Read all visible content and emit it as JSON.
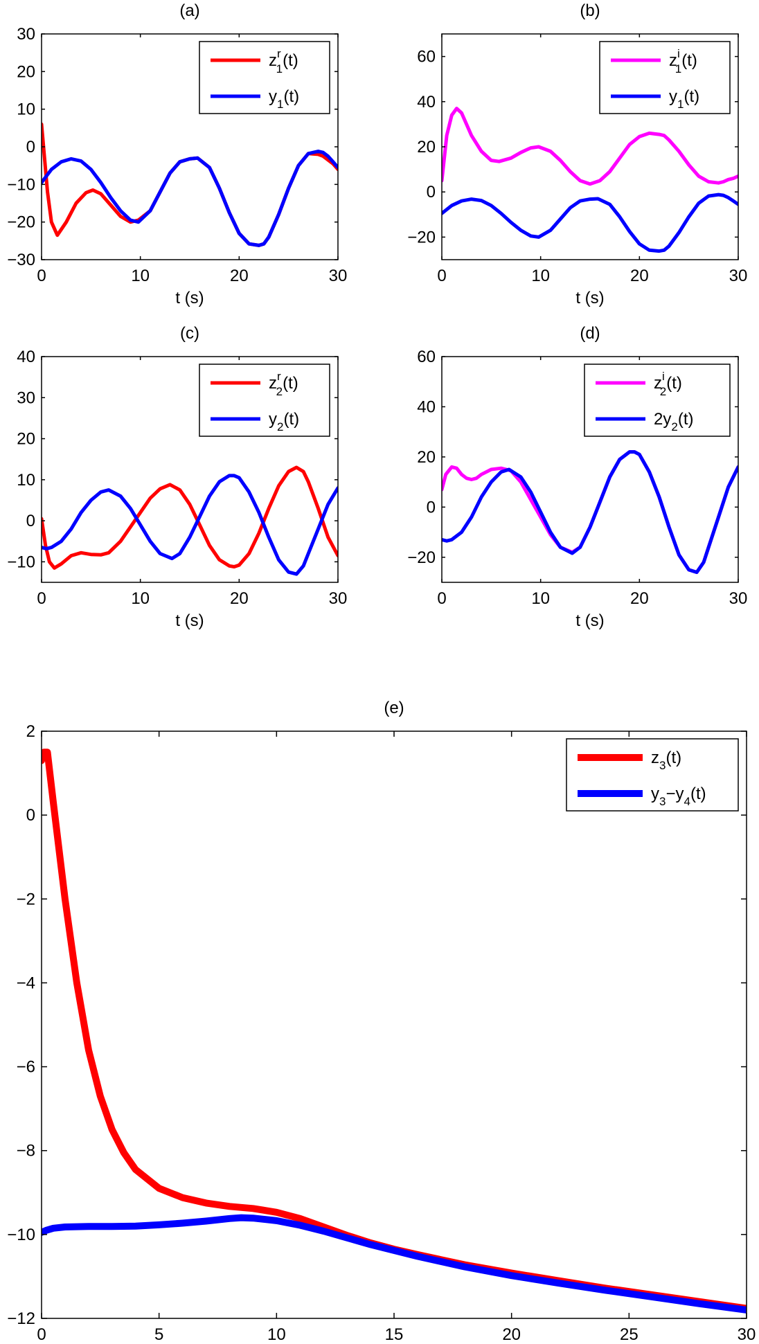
{
  "chart_data": [
    {
      "panel": "a",
      "type": "line",
      "title": "(a)",
      "xlabel": "t (s)",
      "ylabel": "",
      "xlim": [
        0,
        30
      ],
      "ylim": [
        -30,
        30
      ],
      "xticks": [
        0,
        10,
        20,
        30
      ],
      "yticks": [
        -30,
        -20,
        -10,
        0,
        10,
        20,
        30
      ],
      "legend_position": "top-right",
      "series": [
        {
          "name": "z1r(t)",
          "label_main": "z",
          "label_sup": "r",
          "label_sub": "1",
          "label_tail": "(t)",
          "color": "#ff0000",
          "x": [
            0,
            0.6,
            1.0,
            1.6,
            2.5,
            3.5,
            4.5,
            5.2,
            6,
            7,
            8,
            9,
            9.8,
            11,
            12,
            13,
            14,
            15,
            15.8,
            17,
            18,
            19,
            20,
            21,
            22,
            22.5,
            23,
            24,
            25,
            26,
            27,
            28,
            28.5,
            29,
            29.5,
            30
          ],
          "y": [
            6,
            -12,
            -20,
            -23.5,
            -20,
            -15,
            -12.2,
            -11.5,
            -12.5,
            -15.5,
            -18.5,
            -20,
            -19.5,
            -17,
            -12,
            -7,
            -4,
            -3.2,
            -3,
            -5.5,
            -11,
            -17.5,
            -23,
            -25.8,
            -26.2,
            -25.8,
            -24,
            -18,
            -11,
            -5,
            -1.8,
            -2,
            -2.5,
            -3.5,
            -4.5,
            -6
          ]
        },
        {
          "name": "y1(t)",
          "label_main": "y",
          "label_sup": "",
          "label_sub": "1",
          "label_tail": "(t)",
          "color": "#0000ff",
          "x": [
            0,
            1,
            2,
            3,
            4,
            5,
            6,
            7,
            8,
            9,
            9.8,
            11,
            12,
            13,
            14,
            15,
            15.8,
            17,
            18,
            19,
            20,
            21,
            22,
            22.5,
            23,
            24,
            25,
            26,
            27,
            28,
            28.5,
            29,
            29.5,
            30
          ],
          "y": [
            -9.5,
            -6,
            -4,
            -3.2,
            -3.8,
            -6,
            -9.5,
            -13.5,
            -17,
            -19.5,
            -20,
            -17,
            -12,
            -7,
            -4,
            -3.2,
            -3,
            -5.5,
            -11,
            -17.5,
            -23,
            -25.8,
            -26.2,
            -25.8,
            -24,
            -18,
            -11,
            -5,
            -1.8,
            -1.2,
            -1.5,
            -2.5,
            -4,
            -5.5
          ]
        }
      ]
    },
    {
      "panel": "b",
      "type": "line",
      "title": "(b)",
      "xlabel": "t (s)",
      "ylabel": "",
      "xlim": [
        0,
        30
      ],
      "ylim": [
        -30,
        70
      ],
      "xticks": [
        0,
        10,
        20,
        30
      ],
      "yticks": [
        -20,
        0,
        20,
        40,
        60
      ],
      "legend_position": "top-right",
      "series": [
        {
          "name": "z1i(t)",
          "label_main": "z",
          "label_sup": "i",
          "label_sub": "1",
          "label_tail": "(t)",
          "color": "#ff00ff",
          "x": [
            0,
            0.5,
            1,
            1.5,
            2,
            3,
            4,
            5,
            5.8,
            7,
            8,
            9,
            9.8,
            11,
            12,
            13,
            14,
            15,
            16,
            17,
            18,
            19,
            20,
            21,
            22,
            22.5,
            23,
            24,
            25,
            26,
            27,
            28,
            28.5,
            29,
            29.5,
            30
          ],
          "y": [
            5,
            25,
            34,
            37,
            35,
            25,
            18,
            14,
            13.5,
            15,
            17.5,
            19.5,
            20,
            18,
            14,
            9,
            5,
            3.5,
            5,
            9,
            15,
            21,
            24.5,
            26,
            25.5,
            25,
            23,
            18,
            12,
            7,
            4.5,
            4,
            4.5,
            5.5,
            6,
            7
          ]
        },
        {
          "name": "y1(t)",
          "label_main": "y",
          "label_sup": "",
          "label_sub": "1",
          "label_tail": "(t)",
          "color": "#0000ff",
          "x": [
            0,
            1,
            2,
            3,
            4,
            5,
            6,
            7,
            8,
            9,
            9.8,
            11,
            12,
            13,
            14,
            15,
            15.8,
            17,
            18,
            19,
            20,
            21,
            22,
            22.5,
            23,
            24,
            25,
            26,
            27,
            28,
            28.5,
            29,
            29.5,
            30
          ],
          "y": [
            -9.5,
            -6,
            -4,
            -3.2,
            -3.8,
            -6,
            -9.5,
            -13.5,
            -17,
            -19.5,
            -20,
            -17,
            -12,
            -7,
            -4,
            -3.2,
            -3,
            -5.5,
            -11,
            -17.5,
            -23,
            -25.8,
            -26.2,
            -25.8,
            -24,
            -18,
            -11,
            -5,
            -1.8,
            -1.2,
            -1.5,
            -2.5,
            -4,
            -5.5
          ]
        }
      ]
    },
    {
      "panel": "c",
      "type": "line",
      "title": "(c)",
      "xlabel": "t (s)",
      "ylabel": "",
      "xlim": [
        0,
        30
      ],
      "ylim": [
        -15,
        40
      ],
      "xticks": [
        0,
        10,
        20,
        30
      ],
      "yticks": [
        -10,
        0,
        10,
        20,
        30,
        40
      ],
      "legend_position": "top-right",
      "series": [
        {
          "name": "z2r(t)",
          "label_main": "z",
          "label_sup": "r",
          "label_sub": "2",
          "label_tail": "(t)",
          "color": "#ff0000",
          "x": [
            0,
            0.4,
            0.8,
            1.3,
            2,
            3,
            4,
            5,
            6,
            6.8,
            8,
            9,
            10,
            11,
            12,
            13,
            14,
            15,
            16,
            17,
            18,
            19,
            19.5,
            20,
            21,
            22,
            23,
            24,
            25,
            25.8,
            26.5,
            27,
            28,
            29,
            30
          ],
          "y": [
            0.5,
            -6,
            -10,
            -11.5,
            -10.5,
            -8.5,
            -7.8,
            -8.2,
            -8.3,
            -7.8,
            -5,
            -1.5,
            2,
            5.5,
            7.8,
            8.8,
            7.5,
            4,
            -1,
            -6,
            -9.5,
            -11,
            -11.2,
            -10.8,
            -8,
            -3,
            3,
            8.5,
            12,
            13,
            12,
            9.5,
            3,
            -4,
            -8.5
          ]
        },
        {
          "name": "y2(t)",
          "label_main": "y",
          "label_sup": "",
          "label_sub": "2",
          "label_tail": "(t)",
          "color": "#0000ff",
          "x": [
            0,
            0.5,
            1,
            2,
            3,
            4,
            5,
            6,
            6.8,
            8,
            9,
            10,
            11,
            12,
            13,
            13.2,
            14,
            15,
            16,
            17,
            18,
            19,
            19.5,
            20,
            21,
            22,
            23,
            24,
            25,
            25.8,
            26.5,
            27,
            28,
            29,
            30
          ],
          "y": [
            -6.5,
            -6.8,
            -6.5,
            -5,
            -2,
            2,
            5,
            7,
            7.5,
            6,
            3,
            -1,
            -5,
            -8,
            -9,
            -9.2,
            -8,
            -4,
            1,
            6,
            9.5,
            11,
            11,
            10.5,
            7,
            2,
            -4,
            -9.5,
            -12.5,
            -13,
            -11,
            -8,
            -2,
            4,
            8
          ]
        }
      ]
    },
    {
      "panel": "d",
      "type": "line",
      "title": "(d)",
      "xlabel": "t (s)",
      "ylabel": "",
      "xlim": [
        0,
        30
      ],
      "ylim": [
        -30,
        60
      ],
      "xticks": [
        0,
        10,
        20,
        30
      ],
      "yticks": [
        -20,
        0,
        20,
        40,
        60
      ],
      "legend_position": "top-right",
      "series": [
        {
          "name": "z2i(t)",
          "label_main": "z",
          "label_sup": "i",
          "label_sub": "2",
          "label_tail": "(t)",
          "color": "#ff00ff",
          "x": [
            0,
            0.4,
            1,
            1.5,
            2,
            2.5,
            3,
            3.5,
            4,
            5,
            6,
            7,
            8,
            9,
            10,
            11,
            12,
            13.2,
            14,
            15,
            16,
            17,
            18,
            19,
            19.5,
            20,
            21,
            22,
            23,
            24,
            25,
            25.8,
            26.5,
            27,
            28,
            29,
            30
          ],
          "y": [
            7,
            13,
            16,
            15.5,
            13,
            11.5,
            11,
            11.5,
            13,
            15,
            15.5,
            14.5,
            10,
            3,
            -4,
            -11,
            -16,
            -18,
            -16,
            -8,
            2,
            12,
            19,
            22,
            22,
            21,
            14,
            4,
            -8,
            -19,
            -25,
            -26,
            -22,
            -16,
            -4,
            8,
            16
          ]
        },
        {
          "name": "2y2(t)",
          "label_main": "2y",
          "label_sup": "",
          "label_sub": "2",
          "label_tail": "(t)",
          "color": "#0000ff",
          "x": [
            0,
            0.5,
            1,
            2,
            3,
            4,
            5,
            6,
            6.8,
            8,
            9,
            10,
            11,
            12,
            13.2,
            14,
            15,
            16,
            17,
            18,
            19,
            19.5,
            20,
            21,
            22,
            23,
            24,
            25,
            25.8,
            26.5,
            27,
            28,
            29,
            30
          ],
          "y": [
            -13,
            -13.5,
            -13,
            -10,
            -4,
            4,
            10,
            14,
            15,
            12,
            6,
            -2,
            -10,
            -16,
            -18.4,
            -16,
            -8,
            2,
            12,
            19,
            22,
            22,
            21,
            14,
            4,
            -8,
            -19,
            -25,
            -26,
            -22,
            -16,
            -4,
            8,
            16
          ]
        }
      ]
    },
    {
      "panel": "e",
      "type": "line",
      "title": "(e)",
      "xlabel": "t (s)",
      "ylabel": "",
      "xlim": [
        0,
        30
      ],
      "ylim": [
        -12,
        2
      ],
      "xticks": [
        0,
        5,
        10,
        15,
        20,
        25,
        30
      ],
      "yticks": [
        -12,
        -10,
        -8,
        -6,
        -4,
        -2,
        0,
        2
      ],
      "legend_position": "top-right",
      "series": [
        {
          "name": "z3(t)",
          "label_main": "z",
          "label_sup": "",
          "label_sub": "3",
          "label_tail": "(t)",
          "color": "#ff0000",
          "x": [
            0,
            0.1,
            0.25,
            0.5,
            1,
            1.5,
            2,
            2.5,
            3,
            3.5,
            4,
            5,
            6,
            7,
            8,
            9,
            10,
            11,
            12,
            13,
            14,
            15,
            16,
            18,
            20,
            22,
            24,
            26,
            28,
            30
          ],
          "y": [
            1.3,
            1.5,
            1.5,
            0.3,
            -2,
            -4,
            -5.6,
            -6.7,
            -7.5,
            -8.05,
            -8.45,
            -8.9,
            -9.12,
            -9.25,
            -9.33,
            -9.38,
            -9.47,
            -9.62,
            -9.82,
            -10.02,
            -10.2,
            -10.35,
            -10.48,
            -10.72,
            -10.92,
            -11.1,
            -11.28,
            -11.44,
            -11.6,
            -11.76
          ]
        },
        {
          "name": "y3-y4(t)",
          "label_main": "y",
          "label_sup": "",
          "label_sub": "3",
          "label_mid": "−y",
          "label_sub2": "4",
          "label_tail": "(t)",
          "color": "#0000ff",
          "x": [
            0,
            0.2,
            0.5,
            1,
            2,
            3,
            4,
            5,
            6,
            7,
            8,
            8.5,
            9,
            10,
            11,
            12,
            13,
            14,
            15,
            16,
            18,
            20,
            22,
            24,
            26,
            28,
            30
          ],
          "y": [
            -9.95,
            -9.9,
            -9.85,
            -9.82,
            -9.81,
            -9.81,
            -9.8,
            -9.77,
            -9.73,
            -9.68,
            -9.62,
            -9.6,
            -9.61,
            -9.67,
            -9.78,
            -9.92,
            -10.08,
            -10.24,
            -10.38,
            -10.52,
            -10.77,
            -10.98,
            -11.16,
            -11.33,
            -11.49,
            -11.65,
            -11.8
          ]
        }
      ]
    }
  ]
}
